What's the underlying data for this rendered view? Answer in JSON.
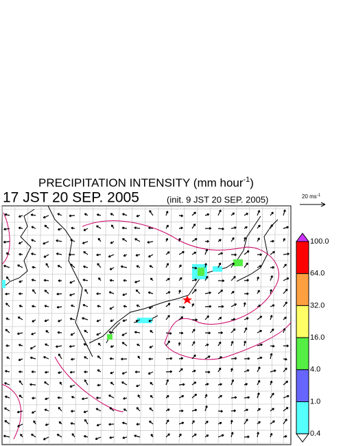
{
  "header": {
    "title": {
      "text": "PRECIPITATION INTENSITY (mm hour",
      "sup": "-1",
      "close": ")"
    },
    "time": "17 JST 20 SEP. 2005",
    "init": "(init. 9 JST 20 SEP. 2005)"
  },
  "wind_scale": {
    "text": "20 ms",
    "sup": "-1"
  },
  "legend": {
    "labels": [
      "100.0",
      "64.0",
      "32.0",
      "16.0",
      "4.0",
      "1.0",
      "0.4"
    ],
    "over_color": "#cc33ff",
    "under_color": "#ffffff",
    "colors": [
      "#ff0000",
      "#ffa040",
      "#ffff66",
      "#55ee44",
      "#6666ff",
      "#55ffff"
    ]
  }
}
